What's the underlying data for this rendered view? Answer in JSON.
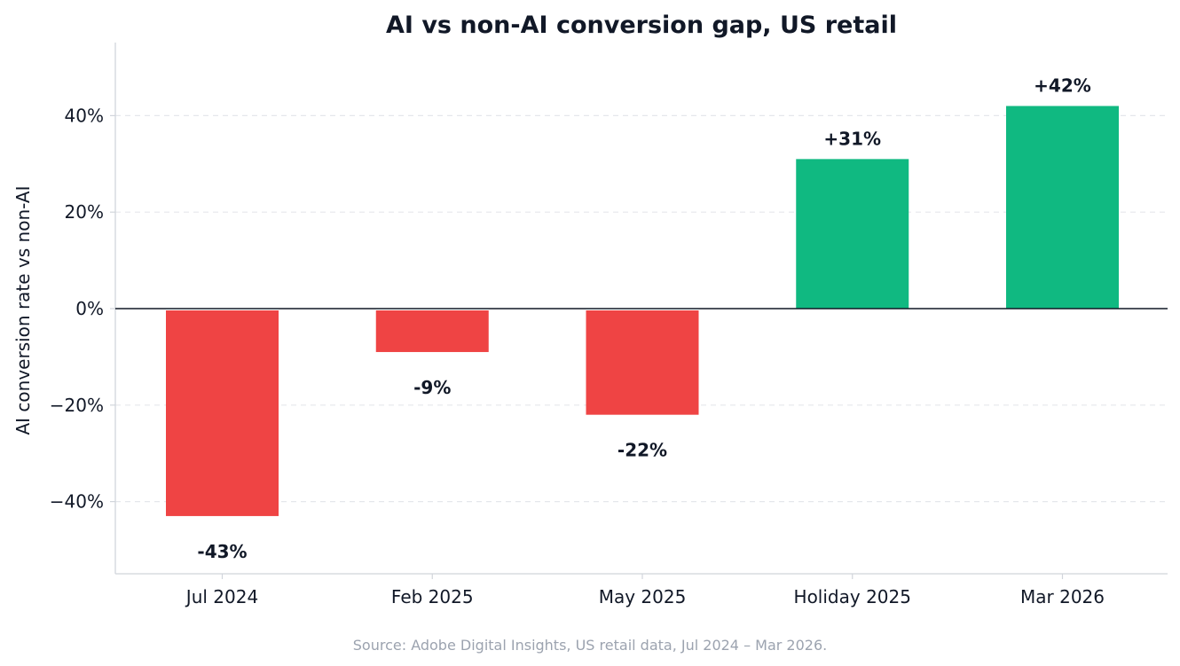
{
  "chart_data": {
    "type": "bar",
    "title": "AI vs non-AI conversion gap, US retail",
    "xlabel": "",
    "ylabel": "AI conversion rate vs non-AI",
    "categories": [
      "Jul 2024",
      "Feb 2025",
      "May 2025",
      "Holiday 2025",
      "Mar 2026"
    ],
    "values": [
      -43,
      -9,
      -22,
      31,
      42
    ],
    "data_labels": [
      "-43%",
      "-9%",
      "-22%",
      "+31%",
      "+42%"
    ],
    "ylim": [
      -55,
      55
    ],
    "yticks": [
      -40,
      -20,
      0,
      20,
      40
    ],
    "ytick_labels": [
      "−40%",
      "−20%",
      "0%",
      "20%",
      "40%"
    ],
    "grid": "y-dashed",
    "colors": {
      "positive": "#10b981",
      "negative": "#ef4444",
      "zero_line": "#111827",
      "grid": "#e5e7eb",
      "axis": "#d1d5db"
    },
    "source": "Source: Adobe Digital Insights, US retail data, Jul 2024 – Mar 2026."
  }
}
